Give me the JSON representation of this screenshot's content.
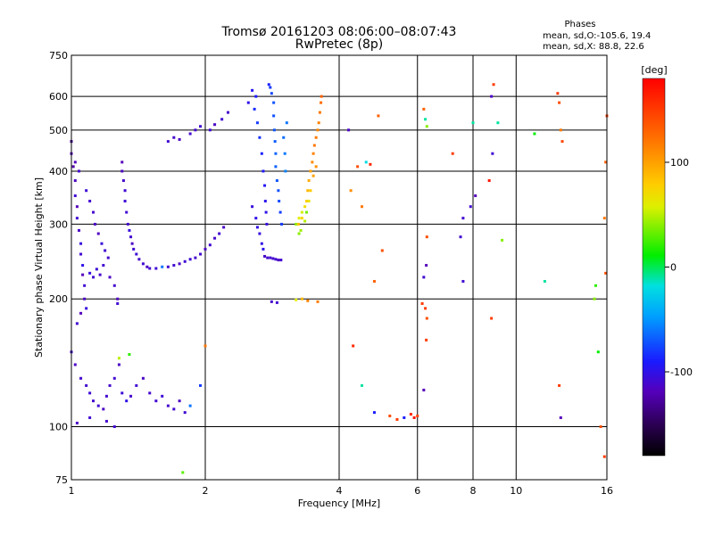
{
  "chart_data": {
    "type": "scatter",
    "title": "Tromsø 20161203 08:06:00–08:07:43",
    "subtitle": "RwPretec (8p)",
    "info_title": "Phases",
    "info_lines": [
      "mean, sd,O:-105.6, 19.4",
      "mean, sd,X:  88.8, 22.6"
    ],
    "xlabel": "Frequency [MHz]",
    "ylabel": "Stationary phase Virtual Height [km]",
    "x_scale": "log",
    "y_scale": "log",
    "xlim": [
      1,
      16
    ],
    "ylim": [
      75,
      750
    ],
    "x_ticks": [
      1,
      2,
      4,
      6,
      8,
      10,
      16
    ],
    "x_tick_labels": [
      "1",
      "2",
      "4",
      "6",
      "8",
      "10",
      "16"
    ],
    "y_ticks": [
      75,
      100,
      200,
      300,
      400,
      500,
      600,
      750
    ],
    "y_tick_labels": [
      "75",
      "100",
      "200",
      "300",
      "400",
      "500",
      "600",
      "750"
    ],
    "grid": true,
    "colorbar": {
      "label": "[deg]",
      "range": [
        -180,
        180
      ],
      "ticks": [
        100,
        0,
        -100
      ],
      "tick_labels": [
        "100",
        "0",
        "-100"
      ]
    },
    "series": [
      {
        "points": [
          [
            1.0,
            470,
            -130
          ],
          [
            1.0,
            440,
            -120
          ],
          [
            1.01,
            410,
            -125
          ],
          [
            1.02,
            380,
            -115
          ],
          [
            1.02,
            350,
            -110
          ],
          [
            1.03,
            330,
            -120
          ],
          [
            1.03,
            310,
            -110
          ],
          [
            1.04,
            290,
            -115
          ],
          [
            1.05,
            270,
            -105
          ],
          [
            1.05,
            255,
            -110
          ],
          [
            1.06,
            240,
            -100
          ],
          [
            1.06,
            228,
            -120
          ],
          [
            1.07,
            215,
            -110
          ],
          [
            1.07,
            200,
            -115
          ],
          [
            1.08,
            190,
            -105
          ],
          [
            1.05,
            185,
            -120
          ],
          [
            1.03,
            175,
            -110
          ],
          [
            1.02,
            420,
            -118
          ],
          [
            1.04,
            400,
            -112
          ],
          [
            1.08,
            360,
            -108
          ],
          [
            1.1,
            340,
            -110
          ],
          [
            1.12,
            320,
            -112
          ],
          [
            1.13,
            300,
            -115
          ],
          [
            1.15,
            285,
            -118
          ],
          [
            1.17,
            270,
            -106
          ],
          [
            1.19,
            260,
            -110
          ],
          [
            1.21,
            250,
            -112
          ],
          [
            1.1,
            230,
            -105
          ],
          [
            1.12,
            225,
            -110
          ],
          [
            1.14,
            235,
            -108
          ],
          [
            1.16,
            228,
            -112
          ],
          [
            1.18,
            240,
            -110
          ],
          [
            1.22,
            225,
            -115
          ],
          [
            1.25,
            215,
            -112
          ],
          [
            1.27,
            200,
            -118
          ],
          [
            1.27,
            195,
            -110
          ],
          [
            1.3,
            420,
            -120
          ],
          [
            1.3,
            400,
            -115
          ],
          [
            1.31,
            380,
            -112
          ],
          [
            1.32,
            360,
            -110
          ],
          [
            1.32,
            340,
            -108
          ],
          [
            1.33,
            320,
            -110
          ],
          [
            1.34,
            300,
            -112
          ],
          [
            1.35,
            290,
            -105
          ],
          [
            1.36,
            280,
            -110
          ],
          [
            1.37,
            270,
            -115
          ],
          [
            1.38,
            262,
            -110
          ],
          [
            1.4,
            255,
            -108
          ],
          [
            1.42,
            248,
            -112
          ],
          [
            1.45,
            242,
            -110
          ],
          [
            1.48,
            238,
            -115
          ],
          [
            1.5,
            236,
            -110
          ],
          [
            1.55,
            236,
            -108
          ],
          [
            1.6,
            238,
            -60
          ],
          [
            1.65,
            238,
            -112
          ],
          [
            1.7,
            240,
            -110
          ],
          [
            1.75,
            242,
            -115
          ],
          [
            1.8,
            245,
            -110
          ],
          [
            1.85,
            248,
            -108
          ],
          [
            1.9,
            250,
            -112
          ],
          [
            1.95,
            255,
            -110
          ],
          [
            2.0,
            262,
            -115
          ],
          [
            2.05,
            268,
            -110
          ],
          [
            2.1,
            278,
            -112
          ],
          [
            2.15,
            285,
            -110
          ],
          [
            2.2,
            295,
            -115
          ],
          [
            1.65,
            470,
            -110
          ],
          [
            1.7,
            480,
            -112
          ],
          [
            1.75,
            475,
            -115
          ],
          [
            1.85,
            490,
            -110
          ],
          [
            1.9,
            500,
            -112
          ],
          [
            1.95,
            510,
            -110
          ],
          [
            2.05,
            500,
            -108
          ],
          [
            2.1,
            515,
            -115
          ],
          [
            2.18,
            530,
            -110
          ],
          [
            2.25,
            550,
            -112
          ],
          [
            2.5,
            580,
            -100
          ],
          [
            2.55,
            620,
            -95
          ],
          [
            2.6,
            600,
            -90
          ],
          [
            2.58,
            560,
            -85
          ],
          [
            2.62,
            520,
            -80
          ],
          [
            2.65,
            480,
            -82
          ],
          [
            2.68,
            440,
            -88
          ],
          [
            2.7,
            400,
            -92
          ],
          [
            2.72,
            370,
            -95
          ],
          [
            2.73,
            340,
            -98
          ],
          [
            2.74,
            320,
            -100
          ],
          [
            2.75,
            300,
            -105
          ],
          [
            2.78,
            640,
            -88
          ],
          [
            2.8,
            630,
            -80
          ],
          [
            2.82,
            610,
            -75
          ],
          [
            2.85,
            580,
            -70
          ],
          [
            2.85,
            540,
            -72
          ],
          [
            2.86,
            500,
            -70
          ],
          [
            2.87,
            470,
            -68
          ],
          [
            2.88,
            440,
            -65
          ],
          [
            2.88,
            410,
            -66
          ],
          [
            2.9,
            380,
            -70
          ],
          [
            2.92,
            360,
            -72
          ],
          [
            2.93,
            340,
            -74
          ],
          [
            2.95,
            320,
            -78
          ],
          [
            2.97,
            300,
            -80
          ],
          [
            2.55,
            330,
            -105
          ],
          [
            2.6,
            310,
            -100
          ],
          [
            2.62,
            295,
            -102
          ],
          [
            2.65,
            285,
            -104
          ],
          [
            2.68,
            270,
            -100
          ],
          [
            2.7,
            262,
            -98
          ],
          [
            3.05,
            520,
            -60
          ],
          [
            3.0,
            480,
            -62
          ],
          [
            3.02,
            440,
            -58
          ],
          [
            3.03,
            400,
            -55
          ],
          [
            2.72,
            252,
            -115
          ],
          [
            2.76,
            250,
            -112
          ],
          [
            2.8,
            250,
            -110
          ],
          [
            2.84,
            249,
            -112
          ],
          [
            2.88,
            248,
            -110
          ],
          [
            2.92,
            247,
            -115
          ],
          [
            2.96,
            247,
            -110
          ],
          [
            2.82,
            197,
            -112
          ],
          [
            2.9,
            196,
            -110
          ],
          [
            3.2,
            300,
            40
          ],
          [
            3.25,
            310,
            60
          ],
          [
            3.3,
            320,
            55
          ],
          [
            3.35,
            330,
            70
          ],
          [
            3.38,
            340,
            80
          ],
          [
            3.4,
            360,
            90
          ],
          [
            3.42,
            380,
            95
          ],
          [
            3.45,
            400,
            100
          ],
          [
            3.48,
            420,
            110
          ],
          [
            3.5,
            440,
            115
          ],
          [
            3.52,
            460,
            120
          ],
          [
            3.55,
            480,
            118
          ],
          [
            3.58,
            500,
            112
          ],
          [
            3.6,
            520,
            115
          ],
          [
            3.62,
            550,
            120
          ],
          [
            3.64,
            580,
            125
          ],
          [
            3.65,
            600,
            130
          ],
          [
            3.28,
            290,
            45
          ],
          [
            3.25,
            285,
            40
          ],
          [
            3.35,
            305,
            50
          ],
          [
            3.42,
            340,
            65
          ],
          [
            3.38,
            320,
            35
          ],
          [
            3.45,
            360,
            80
          ],
          [
            3.3,
            310,
            75
          ],
          [
            3.24,
            300,
            85
          ],
          [
            3.5,
            390,
            100
          ],
          [
            3.55,
            410,
            108
          ],
          [
            3.3,
            200,
            90
          ],
          [
            3.4,
            198,
            115
          ],
          [
            3.58,
            197,
            118
          ],
          [
            3.2,
            199,
            60
          ],
          [
            1.0,
            150,
            -110
          ],
          [
            1.02,
            140,
            -115
          ],
          [
            1.05,
            130,
            -112
          ],
          [
            1.08,
            125,
            -110
          ],
          [
            1.1,
            120,
            -108
          ],
          [
            1.12,
            115,
            -112
          ],
          [
            1.15,
            112,
            -110
          ],
          [
            1.18,
            110,
            -115
          ],
          [
            1.2,
            118,
            -110
          ],
          [
            1.22,
            125,
            -112
          ],
          [
            1.25,
            130,
            -110
          ],
          [
            1.28,
            140,
            -115
          ],
          [
            1.3,
            120,
            -108
          ],
          [
            1.33,
            115,
            -100
          ],
          [
            1.36,
            118,
            -112
          ],
          [
            1.4,
            125,
            -110
          ],
          [
            1.45,
            130,
            -115
          ],
          [
            1.5,
            120,
            -112
          ],
          [
            1.55,
            115,
            -110
          ],
          [
            1.6,
            118,
            -108
          ],
          [
            1.65,
            112,
            -112
          ],
          [
            1.7,
            110,
            -110
          ],
          [
            1.75,
            115,
            -115
          ],
          [
            1.8,
            108,
            -110
          ],
          [
            1.85,
            112,
            -60
          ],
          [
            1.95,
            125,
            -80
          ],
          [
            1.28,
            145,
            50
          ],
          [
            1.35,
            148,
            20
          ],
          [
            1.78,
            78,
            30
          ],
          [
            2.0,
            155,
            120
          ],
          [
            1.03,
            102,
            -115
          ],
          [
            1.1,
            105,
            -110
          ],
          [
            1.2,
            103,
            -112
          ],
          [
            1.25,
            100,
            -110
          ],
          [
            4.2,
            500,
            -115
          ],
          [
            4.4,
            410,
            140
          ],
          [
            4.6,
            420,
            -20
          ],
          [
            4.7,
            415,
            160
          ],
          [
            4.9,
            540,
            130
          ],
          [
            5.0,
            260,
            140
          ],
          [
            4.8,
            220,
            130
          ],
          [
            4.5,
            330,
            120
          ],
          [
            4.25,
            360,
            110
          ],
          [
            4.3,
            155,
            160
          ],
          [
            4.5,
            125,
            -10
          ],
          [
            4.8,
            108,
            -90
          ],
          [
            5.2,
            106,
            140
          ],
          [
            5.4,
            104,
            150
          ],
          [
            5.6,
            105,
            -90
          ],
          [
            5.8,
            107,
            160
          ],
          [
            5.9,
            105,
            170
          ],
          [
            6.0,
            106,
            145
          ],
          [
            6.2,
            560,
            130
          ],
          [
            6.25,
            530,
            -10
          ],
          [
            6.3,
            510,
            40
          ],
          [
            6.3,
            280,
            140
          ],
          [
            6.28,
            240,
            -120
          ],
          [
            6.2,
            225,
            -110
          ],
          [
            6.15,
            195,
            150
          ],
          [
            6.25,
            190,
            150
          ],
          [
            6.3,
            180,
            140
          ],
          [
            6.28,
            160,
            150
          ],
          [
            6.2,
            122,
            -120
          ],
          [
            7.2,
            440,
            150
          ],
          [
            7.6,
            310,
            -110
          ],
          [
            7.5,
            280,
            -110
          ],
          [
            7.6,
            220,
            -110
          ],
          [
            8.0,
            520,
            -10
          ],
          [
            8.1,
            350,
            -120
          ],
          [
            7.9,
            330,
            -110
          ],
          [
            8.8,
            600,
            -115
          ],
          [
            8.9,
            640,
            150
          ],
          [
            8.7,
            380,
            170
          ],
          [
            8.85,
            440,
            -110
          ],
          [
            8.8,
            180,
            150
          ],
          [
            9.3,
            275,
            40
          ],
          [
            9.1,
            520,
            -10
          ],
          [
            11.0,
            490,
            10
          ],
          [
            11.6,
            220,
            -10
          ],
          [
            12.4,
            610,
            150
          ],
          [
            12.5,
            580,
            140
          ],
          [
            12.6,
            500,
            120
          ],
          [
            12.7,
            470,
            145
          ],
          [
            12.5,
            125,
            150
          ],
          [
            12.6,
            105,
            -120
          ],
          [
            15.0,
            200,
            40
          ],
          [
            15.1,
            215,
            20
          ],
          [
            15.3,
            150,
            10
          ],
          [
            15.5,
            100,
            140
          ],
          [
            15.8,
            85,
            150
          ],
          [
            15.9,
            230,
            140
          ],
          [
            16.0,
            540,
            145
          ],
          [
            15.9,
            420,
            130
          ],
          [
            15.8,
            310,
            120
          ]
        ]
      }
    ]
  }
}
